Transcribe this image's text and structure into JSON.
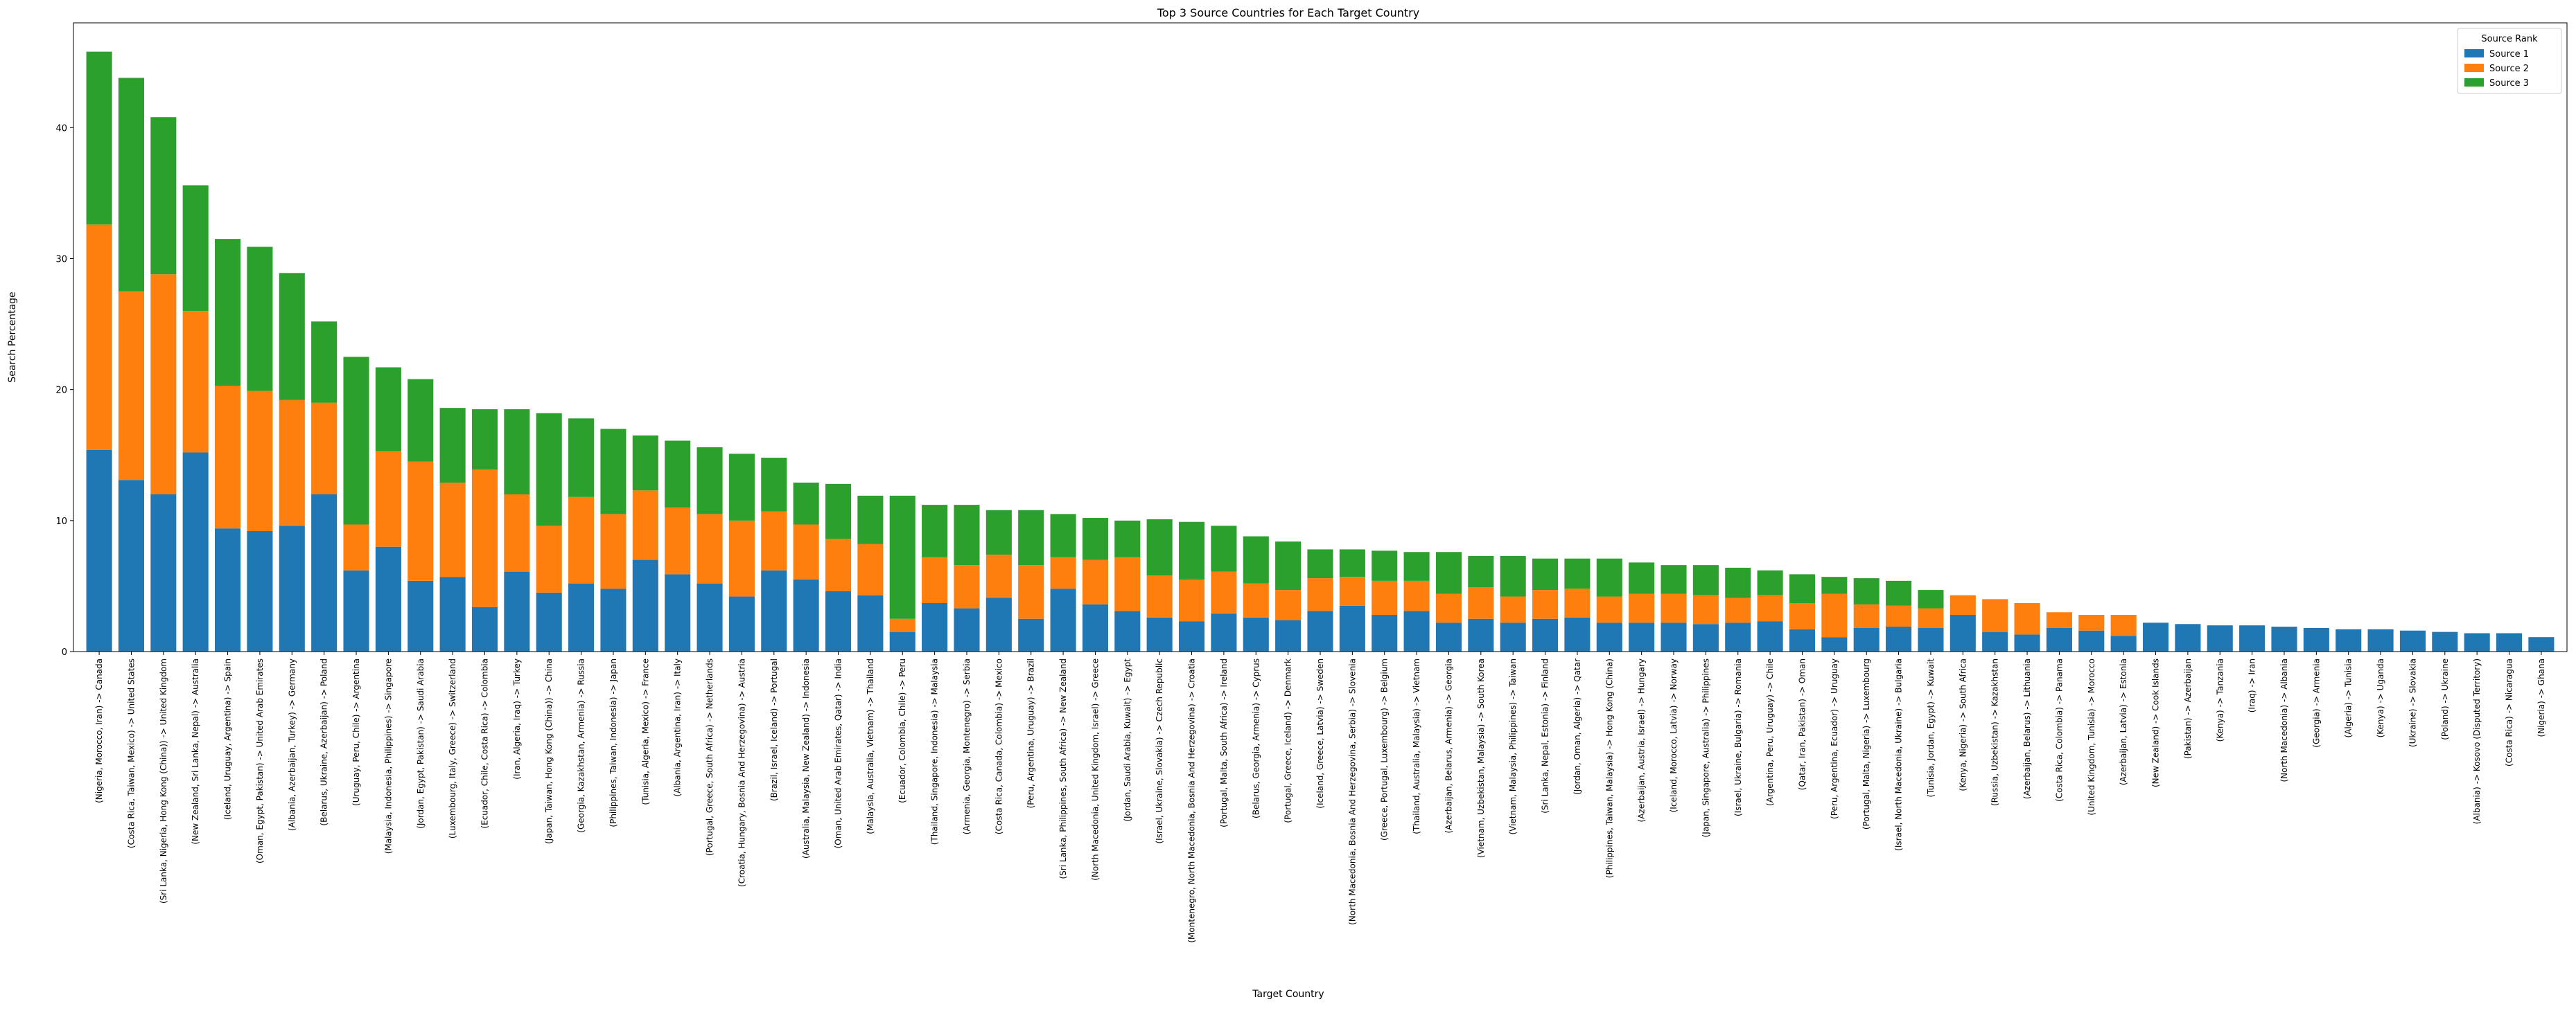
{
  "chart_data": {
    "type": "bar",
    "stacked": true,
    "title": "Top 3 Source Countries for Each Target Country",
    "xlabel": "Target Country",
    "ylabel": "Search Percentage",
    "ylim": [
      0,
      48
    ],
    "yticks": [
      0,
      10,
      20,
      30,
      40
    ],
    "grid": false,
    "legend": {
      "title": "Source Rank",
      "position": "top-right",
      "entries": [
        "Source 1",
        "Source 2",
        "Source 3"
      ]
    },
    "colors": [
      "#1f77b4",
      "#ff7f0e",
      "#2ca02c"
    ],
    "categories": [
      "(Nigeria, Morocco, Iran) -> Canada",
      "(Costa Rica, Taiwan, Mexico) -> United States",
      "(Sri Lanka, Nigeria, Hong Kong (China)) -> United Kingdom",
      "(New Zealand, Sri Lanka, Nepal) -> Australia",
      "(Iceland, Uruguay, Argentina) -> Spain",
      "(Oman, Egypt, Pakistan) -> United Arab Emirates",
      "(Albania, Azerbaijan, Turkey) -> Germany",
      "(Belarus, Ukraine, Azerbaijan) -> Poland",
      "(Uruguay, Peru, Chile) -> Argentina",
      "(Malaysia, Indonesia, Philippines) -> Singapore",
      "(Jordan, Egypt, Pakistan) -> Saudi Arabia",
      "(Luxembourg, Italy, Greece) -> Switzerland",
      "(Ecuador, Chile, Costa Rica) -> Colombia",
      "(Iran, Algeria, Iraq) -> Turkey",
      "(Japan, Taiwan, Hong Kong (China)) -> China",
      "(Georgia, Kazakhstan, Armenia) -> Russia",
      "(Philippines, Taiwan, Indonesia) -> Japan",
      "(Tunisia, Algeria, Mexico) -> France",
      "(Albania, Argentina, Iran) -> Italy",
      "(Portugal, Greece, South Africa) -> Netherlands",
      "(Croatia, Hungary, Bosnia And Herzegovina) -> Austria",
      "(Brazil, Israel, Iceland) -> Portugal",
      "(Australia, Malaysia, New Zealand) -> Indonesia",
      "(Oman, United Arab Emirates, Qatar) -> India",
      "(Malaysia, Australia, Vietnam) -> Thailand",
      "(Ecuador, Colombia, Chile) -> Peru",
      "(Thailand, Singapore, Indonesia) -> Malaysia",
      "(Armenia, Georgia, Montenegro) -> Serbia",
      "(Costa Rica, Canada, Colombia) -> Mexico",
      "(Peru, Argentina, Uruguay) -> Brazil",
      "(Sri Lanka, Philippines, South Africa) -> New Zealand",
      "(North Macedonia, United Kingdom, Israel) -> Greece",
      "(Jordan, Saudi Arabia, Kuwait) -> Egypt",
      "(Israel, Ukraine, Slovakia) -> Czech Republic",
      "(Montenegro, North Macedonia, Bosnia And Herzegovina) -> Croatia",
      "(Portugal, Malta, South Africa) -> Ireland",
      "(Belarus, Georgia, Armenia) -> Cyprus",
      "(Portugal, Greece, Iceland) -> Denmark",
      "(Iceland, Greece, Latvia) -> Sweden",
      "(North Macedonia, Bosnia And Herzegovina, Serbia) -> Slovenia",
      "(Greece, Portugal, Luxembourg) -> Belgium",
      "(Thailand, Australia, Malaysia) -> Vietnam",
      "(Azerbaijan, Belarus, Armenia) -> Georgia",
      "(Vietnam, Uzbekistan, Malaysia) -> South Korea",
      "(Vietnam, Malaysia, Philippines) -> Taiwan",
      "(Sri Lanka, Nepal, Estonia) -> Finland",
      "(Jordan, Oman, Algeria) -> Qatar",
      "(Philippines, Taiwan, Malaysia) -> Hong Kong (China)",
      "(Azerbaijan, Austria, Israel) -> Hungary",
      "(Iceland, Morocco, Latvia) -> Norway",
      "(Japan, Singapore, Australia) -> Philippines",
      "(Israel, Ukraine, Bulgaria) -> Romania",
      "(Argentina, Peru, Uruguay) -> Chile",
      "(Qatar, Iran, Pakistan) -> Oman",
      "(Peru, Argentina, Ecuador) -> Uruguay",
      "(Portugal, Malta, Nigeria) -> Luxembourg",
      "(Israel, North Macedonia, Ukraine) -> Bulgaria",
      "(Tunisia, Jordan, Egypt) -> Kuwait",
      "(Kenya, Nigeria) -> South Africa",
      "(Russia, Uzbekistan) -> Kazakhstan",
      "(Azerbaijan, Belarus) -> Lithuania",
      "(Costa Rica, Colombia) -> Panama",
      "(United Kingdom, Tunisia) -> Morocco",
      "(Azerbaijan, Latvia) -> Estonia",
      "(New Zealand) -> Cook Islands",
      "(Pakistan) -> Azerbaijan",
      "(Kenya) -> Tanzania",
      "(Iraq) -> Iran",
      "(North Macedonia) -> Albania",
      "(Georgia) -> Armenia",
      "(Algeria) -> Tunisia",
      "(Kenya) -> Uganda",
      "(Ukraine) -> Slovakia",
      "(Poland) -> Ukraine",
      "(Albania) -> Kosovo (Disputed Territory)",
      "(Costa Rica) -> Nicaragua",
      "(Nigeria) -> Ghana"
    ],
    "series": [
      {
        "name": "Source 1",
        "values": [
          15.4,
          13.1,
          12.0,
          15.2,
          9.4,
          9.2,
          9.6,
          12.0,
          6.2,
          8.0,
          5.4,
          5.7,
          3.4,
          6.1,
          4.5,
          5.2,
          4.8,
          7.0,
          5.9,
          5.2,
          4.2,
          6.2,
          5.5,
          4.6,
          4.3,
          1.5,
          3.7,
          3.3,
          4.1,
          2.5,
          4.8,
          3.6,
          3.1,
          2.6,
          2.3,
          2.9,
          2.6,
          2.4,
          3.1,
          3.5,
          2.8,
          3.1,
          2.2,
          2.5,
          2.2,
          2.5,
          2.6,
          2.2,
          2.2,
          2.2,
          2.1,
          2.2,
          2.3,
          1.7,
          1.1,
          1.8,
          1.9,
          1.8,
          2.8,
          1.5,
          1.3,
          1.8,
          1.6,
          1.2,
          2.2,
          2.1,
          2.0,
          2.0,
          1.9,
          1.8,
          1.7,
          1.7,
          1.6,
          1.5,
          1.4,
          1.4,
          1.1
        ]
      },
      {
        "name": "Source 2",
        "values": [
          17.2,
          14.4,
          16.8,
          10.8,
          10.9,
          10.7,
          9.6,
          7.0,
          3.5,
          7.3,
          9.1,
          7.2,
          10.5,
          5.9,
          5.1,
          6.6,
          5.7,
          5.3,
          5.1,
          5.3,
          5.8,
          4.5,
          4.2,
          4.0,
          3.9,
          1.0,
          3.5,
          3.3,
          3.3,
          4.1,
          2.4,
          3.4,
          4.1,
          3.2,
          3.2,
          3.2,
          2.6,
          2.3,
          2.5,
          2.2,
          2.6,
          2.3,
          2.2,
          2.4,
          2.0,
          2.2,
          2.2,
          2.0,
          2.2,
          2.2,
          2.2,
          1.9,
          2.0,
          2.0,
          3.3,
          1.8,
          1.6,
          1.5,
          1.5,
          2.5,
          2.4,
          1.2,
          1.2,
          1.6,
          0,
          0,
          0,
          0,
          0,
          0,
          0,
          0,
          0,
          0,
          0,
          0,
          0
        ]
      },
      {
        "name": "Source 3",
        "values": [
          13.2,
          16.3,
          12.0,
          9.6,
          11.2,
          11.0,
          9.7,
          6.2,
          12.8,
          6.4,
          6.3,
          5.7,
          4.6,
          6.5,
          8.6,
          6.0,
          6.5,
          4.2,
          5.1,
          5.1,
          5.1,
          4.1,
          3.2,
          4.2,
          3.7,
          9.4,
          4.0,
          4.6,
          3.4,
          4.2,
          3.3,
          3.2,
          2.8,
          4.3,
          4.4,
          3.5,
          3.6,
          3.7,
          2.2,
          2.1,
          2.3,
          2.2,
          3.2,
          2.4,
          3.1,
          2.4,
          2.3,
          2.9,
          2.4,
          2.2,
          2.3,
          2.3,
          1.9,
          2.2,
          1.3,
          2.0,
          1.9,
          1.4,
          0,
          0,
          0,
          0,
          0,
          0,
          0,
          0,
          0,
          0,
          0,
          0,
          0,
          0,
          0,
          0,
          0,
          0,
          0
        ]
      }
    ]
  }
}
